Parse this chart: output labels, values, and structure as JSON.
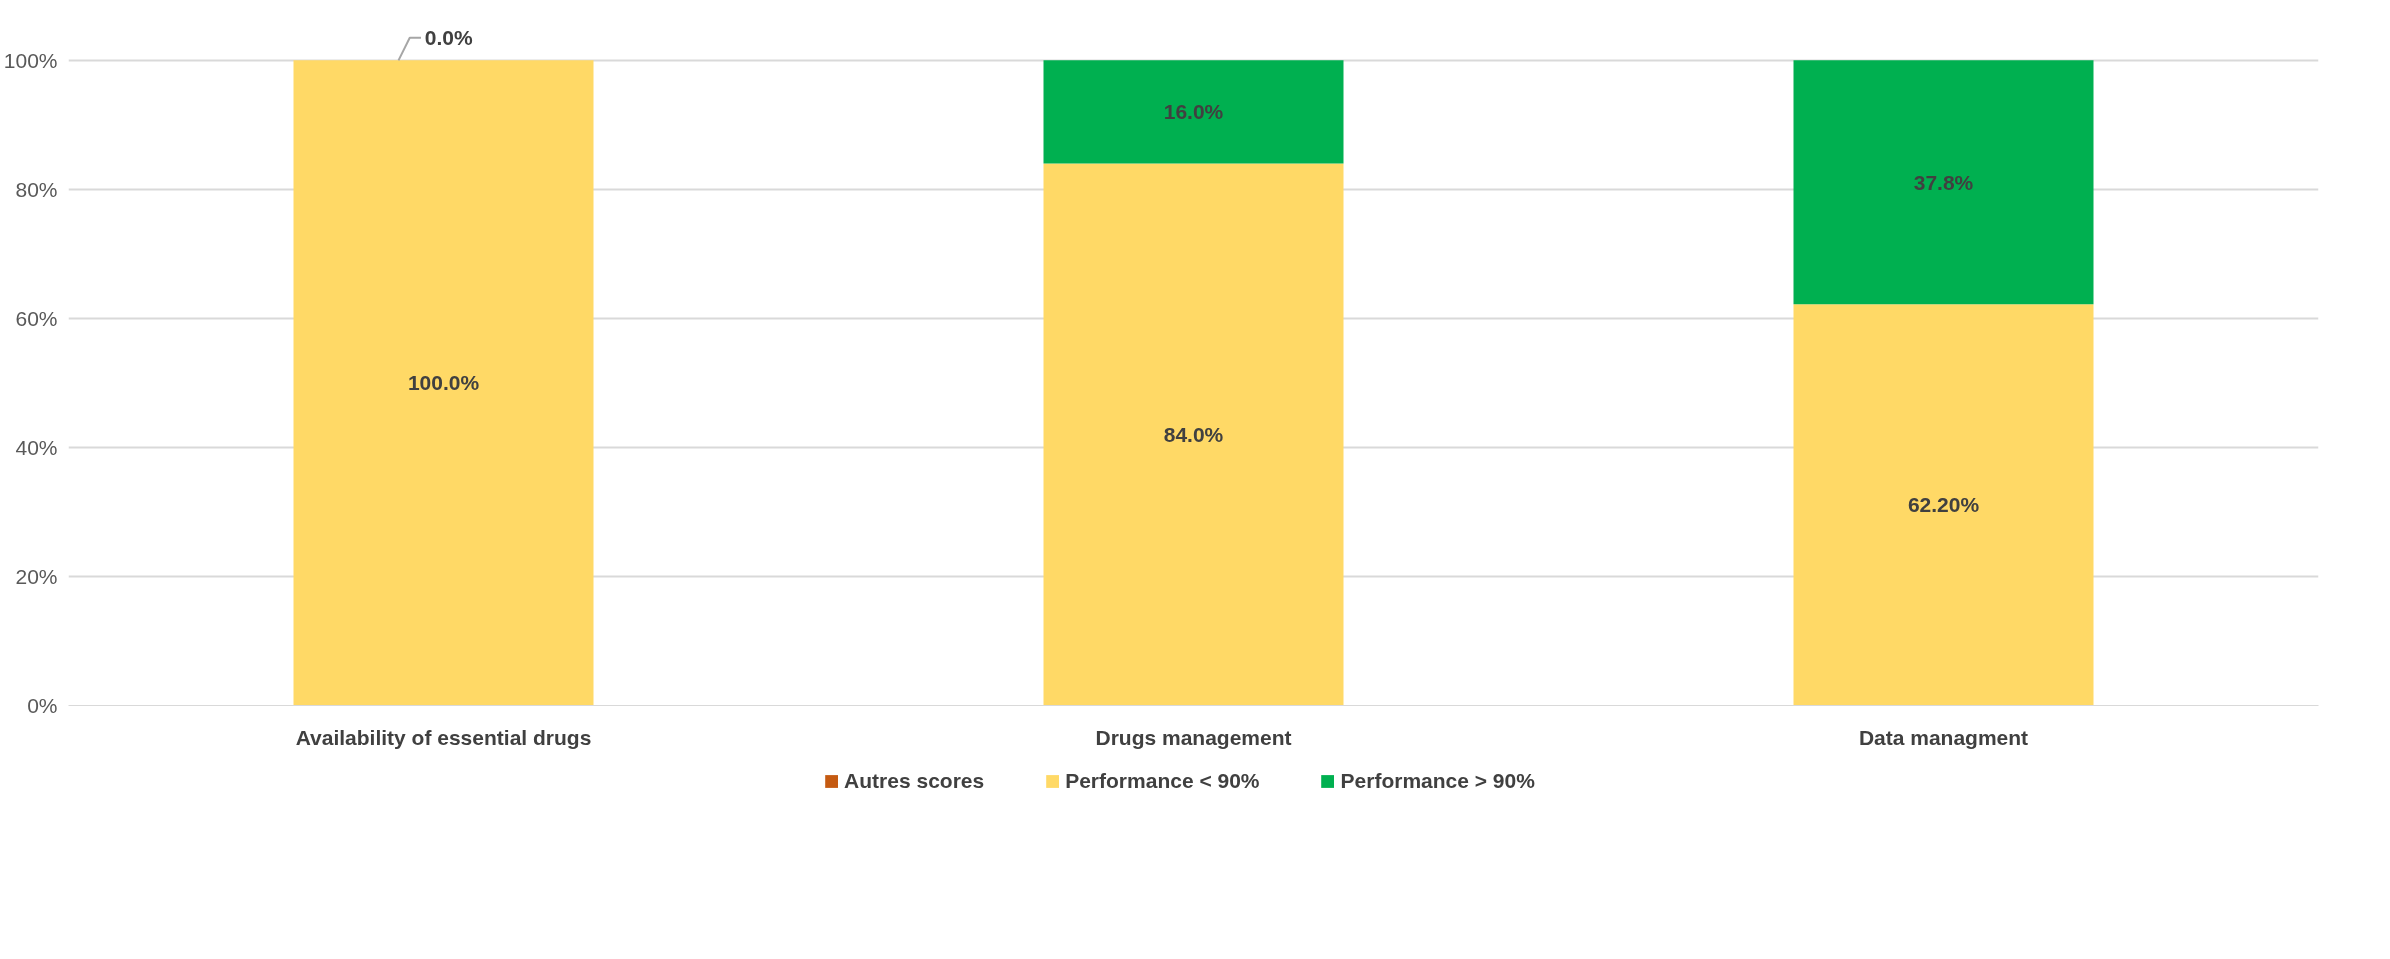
{
  "chart_data": {
    "type": "bar",
    "stacked": true,
    "categories": [
      "Availability of essential drugs",
      "Drugs management",
      "Data managment"
    ],
    "series": [
      {
        "name": "Autres scores",
        "color": "#c55a11",
        "values": [
          null,
          null,
          null
        ]
      },
      {
        "name": "Performance < 90%",
        "color": "#ffd966",
        "values": [
          100.0,
          84.0,
          62.2
        ],
        "value_labels": [
          "100.0%",
          "84.0%",
          "62.20%"
        ]
      },
      {
        "name": "Performance > 90%",
        "color": "#00b050",
        "values": [
          0.0,
          16.0,
          37.8
        ],
        "value_labels": [
          "0.0%",
          "16.0%",
          "37.8%"
        ]
      }
    ],
    "ylim": [
      0,
      100
    ],
    "yticks": [
      {
        "value": 0,
        "label": "0%"
      },
      {
        "value": 20,
        "label": "20%"
      },
      {
        "value": 40,
        "label": "40%"
      },
      {
        "value": 60,
        "label": "60%"
      },
      {
        "value": 80,
        "label": "80%"
      },
      {
        "value": 100,
        "label": "100%"
      }
    ],
    "grid": "y",
    "legend": "bottom"
  }
}
